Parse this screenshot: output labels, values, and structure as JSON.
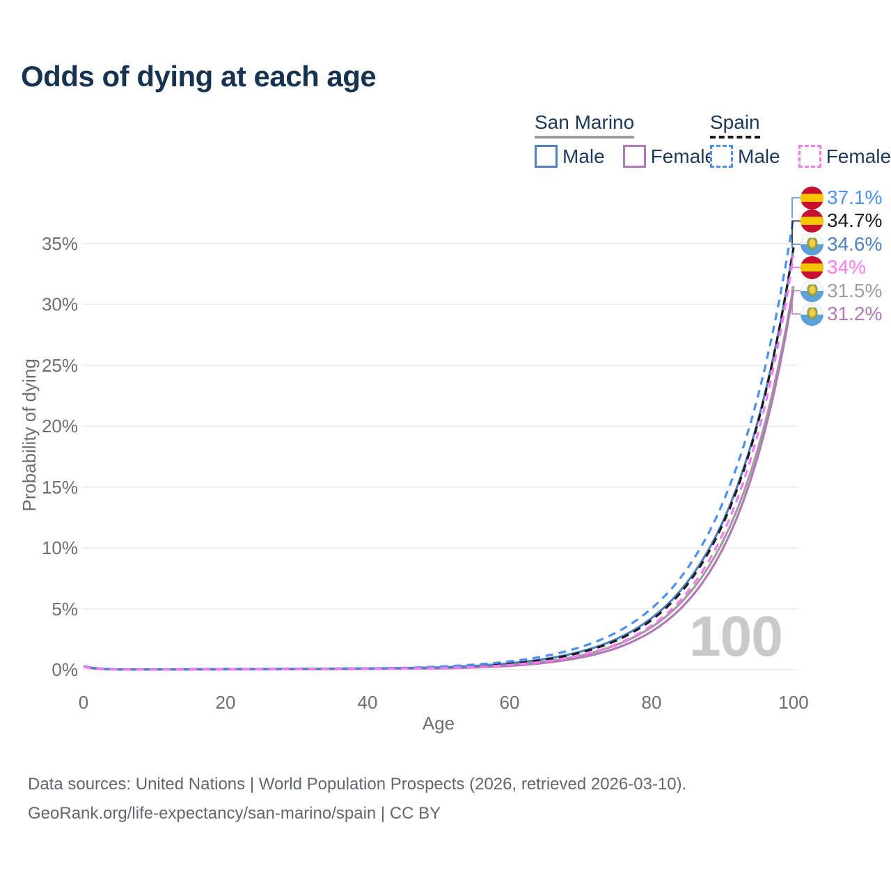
{
  "title": "Odds of dying at each age",
  "legend": {
    "groups": [
      {
        "name": "San Marino",
        "line_style": "solid",
        "underline_color": "#9e9e9e",
        "items": [
          {
            "label": "Male",
            "color": "#4f80c0"
          },
          {
            "label": "Female",
            "color": "#b278b8"
          }
        ]
      },
      {
        "name": "Spain",
        "line_style": "dashed",
        "underline_color": "#1b1b1b",
        "items": [
          {
            "label": "Male",
            "color": "#4a90f2"
          },
          {
            "label": "Female",
            "color": "#fb7af0"
          }
        ]
      }
    ]
  },
  "chart_data": {
    "type": "line",
    "title": "Odds of dying at each age",
    "xlabel": "Age",
    "ylabel": "Probability of dying",
    "xlim": [
      0,
      100
    ],
    "ylim": [
      0,
      37.5
    ],
    "grid": true,
    "watermark": "100",
    "x_ticks": [
      0,
      20,
      40,
      60,
      80,
      100
    ],
    "y_ticks": [
      0,
      5,
      10,
      15,
      20,
      25,
      30,
      35
    ],
    "y_tick_suffix": "%",
    "x": [
      0,
      5,
      10,
      15,
      20,
      25,
      30,
      35,
      40,
      45,
      50,
      55,
      60,
      65,
      70,
      75,
      80,
      85,
      90,
      95,
      100
    ],
    "series": [
      {
        "name": "San Marino — Both sexes",
        "color": "#9e9e9e",
        "dashed": false,
        "end_value": 31.5,
        "end_label": "31.5%",
        "values": [
          0.25,
          0.01,
          0.01,
          0.02,
          0.03,
          0.04,
          0.05,
          0.06,
          0.08,
          0.1,
          0.13,
          0.22,
          0.39,
          0.67,
          1.16,
          2.02,
          3.49,
          6.05,
          10.49,
          18.18,
          31.5
        ]
      },
      {
        "name": "San Marino — Female",
        "color": "#b278b8",
        "dashed": false,
        "end_value": 31.2,
        "end_label": "31.2%",
        "values": [
          0.23,
          0.01,
          0.01,
          0.02,
          0.02,
          0.03,
          0.03,
          0.04,
          0.06,
          0.08,
          0.1,
          0.18,
          0.31,
          0.56,
          0.99,
          1.76,
          3.13,
          5.56,
          9.88,
          17.56,
          31.2
        ]
      },
      {
        "name": "San Marino — Male",
        "color": "#4f80c0",
        "dashed": false,
        "end_value": 34.6,
        "end_label": "34.6%",
        "values": [
          0.27,
          0.02,
          0.02,
          0.03,
          0.05,
          0.05,
          0.06,
          0.08,
          0.1,
          0.13,
          0.18,
          0.31,
          0.52,
          0.88,
          1.48,
          2.5,
          4.23,
          7.16,
          12.1,
          20.46,
          34.6
        ]
      },
      {
        "name": "Spain — Both sexes",
        "color": "#1b1b1b",
        "dashed": true,
        "end_value": 34.7,
        "end_label": "34.7%",
        "values": [
          0.26,
          0.02,
          0.02,
          0.03,
          0.04,
          0.05,
          0.06,
          0.07,
          0.09,
          0.12,
          0.16,
          0.28,
          0.48,
          0.82,
          1.4,
          2.38,
          4.07,
          6.96,
          11.89,
          20.31,
          34.7
        ]
      },
      {
        "name": "Spain — Male",
        "color": "#4a90f2",
        "dashed": true,
        "end_value": 37.1,
        "end_label": "37.1%",
        "values": [
          0.29,
          0.02,
          0.02,
          0.04,
          0.05,
          0.06,
          0.07,
          0.09,
          0.11,
          0.15,
          0.25,
          0.41,
          0.68,
          1.12,
          1.85,
          3.04,
          5.02,
          8.27,
          13.65,
          22.5,
          37.1
        ]
      },
      {
        "name": "Spain — Female",
        "color": "#fb7af0",
        "dashed": true,
        "end_value": 34.0,
        "end_label": "34%",
        "values": [
          0.24,
          0.01,
          0.01,
          0.02,
          0.03,
          0.03,
          0.04,
          0.05,
          0.07,
          0.09,
          0.13,
          0.22,
          0.39,
          0.67,
          1.18,
          2.07,
          3.62,
          6.33,
          11.09,
          19.42,
          34.0
        ]
      }
    ],
    "end_labels": [
      {
        "value": "37.1%",
        "series": "Spain — Male",
        "flag": "spain",
        "color": "#4a90f2",
        "pct": 37.1
      },
      {
        "value": "34.7%",
        "series": "Spain — Both sexes",
        "flag": "spain",
        "color": "#1b1b1b",
        "pct": 34.7
      },
      {
        "value": "34.6%",
        "series": "San Marino — Male",
        "flag": "san-marino",
        "color": "#4f80c0",
        "pct": 34.6
      },
      {
        "value": "34%",
        "series": "Spain — Female",
        "flag": "spain",
        "color": "#fb7af0",
        "pct": 34.0
      },
      {
        "value": "31.5%",
        "series": "San Marino — Both sexes",
        "flag": "san-marino",
        "color": "#9e9e9e",
        "pct": 31.5
      },
      {
        "value": "31.2%",
        "series": "San Marino — Female",
        "flag": "san-marino",
        "color": "#b278b8",
        "pct": 31.2
      }
    ],
    "flag_colors": {
      "spain": [
        "#c8102e",
        "#f6c500"
      ],
      "san_marino": [
        "#f7f7f7",
        "#5aa2d9"
      ]
    },
    "grid_color": "#e9e9e9",
    "tick_text_color": "#6e6e6e",
    "watermark_color": "#c9c9c9"
  },
  "footer": {
    "line1": "Data sources: United Nations | World Population Prospects (2026, retrieved 2026-03-10).",
    "line2": "GeoRank.org/life-expectancy/san-marino/spain | CC BY"
  }
}
